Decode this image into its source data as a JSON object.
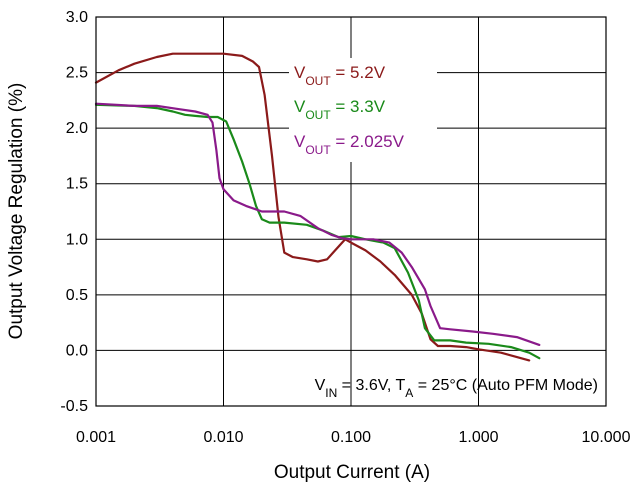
{
  "chart_data": {
    "type": "line",
    "title": "",
    "xlabel": "Output Current (A)",
    "ylabel": "Output Voltage Regulation (%)",
    "xscale": "log",
    "xlim": [
      0.001,
      10
    ],
    "ylim": [
      -0.5,
      3.0
    ],
    "x_tick_labels": [
      "0.001",
      "0.010",
      "0.100",
      "1.000",
      "10.000"
    ],
    "x_tick_values": [
      0.001,
      0.01,
      0.1,
      1,
      10
    ],
    "y_tick_labels": [
      "3.0",
      "2.5",
      "2.0",
      "1.5",
      "1.0",
      "0.5",
      "0.0",
      "-0.5"
    ],
    "y_tick_values": [
      3.0,
      2.5,
      2.0,
      1.5,
      1.0,
      0.5,
      0.0,
      -0.5
    ],
    "grid": true,
    "legend_placement": "top-center",
    "annotation": {
      "v": "V",
      "sub_in": "IN",
      "mid": " = 3.6V, T",
      "sub_a": "A",
      "rest": " = 25°C (Auto PFM Mode)"
    },
    "series": [
      {
        "name": "V_OUT = 5.2V",
        "legend": {
          "v": "V",
          "sub": "OUT",
          "rest": " = 5.2V"
        },
        "color": "#8b1a1a",
        "points": [
          [
            0.001,
            2.41
          ],
          [
            0.0015,
            2.52
          ],
          [
            0.002,
            2.58
          ],
          [
            0.003,
            2.64
          ],
          [
            0.004,
            2.67
          ],
          [
            0.006,
            2.67
          ],
          [
            0.01,
            2.67
          ],
          [
            0.014,
            2.65
          ],
          [
            0.017,
            2.6
          ],
          [
            0.019,
            2.55
          ],
          [
            0.021,
            2.3
          ],
          [
            0.024,
            1.75
          ],
          [
            0.027,
            1.2
          ],
          [
            0.03,
            0.88
          ],
          [
            0.035,
            0.84
          ],
          [
            0.045,
            0.82
          ],
          [
            0.055,
            0.8
          ],
          [
            0.065,
            0.82
          ],
          [
            0.075,
            0.9
          ],
          [
            0.09,
            1.0
          ],
          [
            0.1,
            0.97
          ],
          [
            0.13,
            0.9
          ],
          [
            0.17,
            0.8
          ],
          [
            0.22,
            0.68
          ],
          [
            0.3,
            0.5
          ],
          [
            0.36,
            0.33
          ],
          [
            0.42,
            0.1
          ],
          [
            0.48,
            0.04
          ],
          [
            0.6,
            0.04
          ],
          [
            0.8,
            0.03
          ],
          [
            1.0,
            0.01
          ],
          [
            1.5,
            -0.02
          ],
          [
            2.0,
            -0.06
          ],
          [
            2.5,
            -0.09
          ]
        ]
      },
      {
        "name": "V_OUT = 3.3V",
        "legend": {
          "v": "V",
          "sub": "OUT",
          "rest": " = 3.3V"
        },
        "color": "#1a8a1a",
        "points": [
          [
            0.001,
            2.21
          ],
          [
            0.002,
            2.2
          ],
          [
            0.003,
            2.18
          ],
          [
            0.004,
            2.15
          ],
          [
            0.005,
            2.12
          ],
          [
            0.006,
            2.11
          ],
          [
            0.0075,
            2.1
          ],
          [
            0.009,
            2.1
          ],
          [
            0.0105,
            2.06
          ],
          [
            0.012,
            1.9
          ],
          [
            0.014,
            1.7
          ],
          [
            0.016,
            1.5
          ],
          [
            0.018,
            1.3
          ],
          [
            0.02,
            1.18
          ],
          [
            0.023,
            1.15
          ],
          [
            0.03,
            1.15
          ],
          [
            0.045,
            1.13
          ],
          [
            0.06,
            1.08
          ],
          [
            0.08,
            1.02
          ],
          [
            0.1,
            1.03
          ],
          [
            0.13,
            1.0
          ],
          [
            0.18,
            0.97
          ],
          [
            0.22,
            0.92
          ],
          [
            0.28,
            0.7
          ],
          [
            0.34,
            0.45
          ],
          [
            0.38,
            0.2
          ],
          [
            0.45,
            0.09
          ],
          [
            0.6,
            0.09
          ],
          [
            0.8,
            0.07
          ],
          [
            1.2,
            0.06
          ],
          [
            1.8,
            0.03
          ],
          [
            2.5,
            -0.02
          ],
          [
            3.0,
            -0.07
          ]
        ]
      },
      {
        "name": "V_OUT = 2.025V",
        "legend": {
          "v": "V",
          "sub": "OUT",
          "rest": " = 2.025V"
        },
        "color": "#8a1a8a",
        "points": [
          [
            0.001,
            2.22
          ],
          [
            0.002,
            2.2
          ],
          [
            0.003,
            2.2
          ],
          [
            0.0045,
            2.17
          ],
          [
            0.006,
            2.15
          ],
          [
            0.0075,
            2.12
          ],
          [
            0.0082,
            2.05
          ],
          [
            0.0088,
            1.8
          ],
          [
            0.0093,
            1.55
          ],
          [
            0.01,
            1.45
          ],
          [
            0.012,
            1.35
          ],
          [
            0.015,
            1.3
          ],
          [
            0.02,
            1.25
          ],
          [
            0.03,
            1.25
          ],
          [
            0.04,
            1.21
          ],
          [
            0.055,
            1.1
          ],
          [
            0.07,
            1.04
          ],
          [
            0.085,
            1.01
          ],
          [
            0.1,
            1.0
          ],
          [
            0.15,
            1.0
          ],
          [
            0.2,
            0.97
          ],
          [
            0.25,
            0.88
          ],
          [
            0.3,
            0.75
          ],
          [
            0.38,
            0.55
          ],
          [
            0.42,
            0.4
          ],
          [
            0.5,
            0.2
          ],
          [
            0.6,
            0.19
          ],
          [
            0.9,
            0.17
          ],
          [
            1.3,
            0.15
          ],
          [
            2.0,
            0.12
          ],
          [
            3.0,
            0.05
          ]
        ]
      }
    ]
  }
}
